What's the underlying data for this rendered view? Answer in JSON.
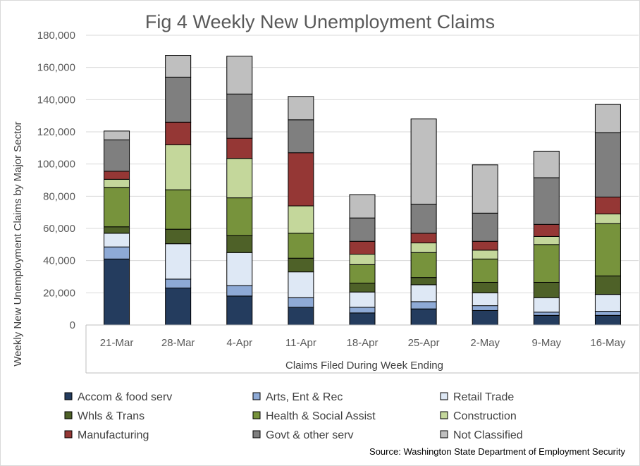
{
  "chart_data": {
    "type": "bar",
    "stacked": true,
    "title": "Fig 4 Weekly New Unemployment Claims",
    "xlabel": "Claims Filed During Week Ending",
    "ylabel": "Weekly New Unemployment Claims by Major Sector",
    "ylim": [
      0,
      180000
    ],
    "yticks": [
      "0",
      "20,000",
      "40,000",
      "60,000",
      "80,000",
      "100,000",
      "120,000",
      "140,000",
      "160,000",
      "180,000"
    ],
    "ytick_values": [
      0,
      20000,
      40000,
      60000,
      80000,
      100000,
      120000,
      140000,
      160000,
      180000
    ],
    "grid": true,
    "legend_position": "bottom",
    "categories": [
      "21-Mar",
      "28-Mar",
      "4-Apr",
      "11-Apr",
      "18-Apr",
      "25-Apr",
      "2-May",
      "9-May",
      "16-May"
    ],
    "series": [
      {
        "name": "Accom & food serv",
        "color": "#243c5e",
        "values": [
          41000,
          23000,
          18000,
          11000,
          7500,
          10000,
          9000,
          6000,
          6000
        ]
      },
      {
        "name": "Arts, Ent & Rec",
        "color": "#8eaad6",
        "values": [
          7500,
          5500,
          6500,
          6000,
          3500,
          4500,
          3000,
          2000,
          2500
        ]
      },
      {
        "name": "Retail Trade",
        "color": "#dee8f5",
        "values": [
          8500,
          22000,
          20500,
          16000,
          9500,
          10500,
          8000,
          9000,
          10500
        ]
      },
      {
        "name": "Whls & Trans",
        "color": "#4e6128",
        "values": [
          4000,
          9000,
          10500,
          8500,
          5500,
          4500,
          6500,
          9500,
          11500
        ]
      },
      {
        "name": "Health & Social Assist",
        "color": "#77933c",
        "values": [
          24500,
          24500,
          23500,
          15500,
          11500,
          15500,
          14500,
          23500,
          32500
        ]
      },
      {
        "name": "Construction",
        "color": "#c4d79b",
        "values": [
          5000,
          28000,
          24500,
          17000,
          6500,
          6000,
          5500,
          5000,
          6000
        ]
      },
      {
        "name": "Manufacturing",
        "color": "#953735",
        "values": [
          5000,
          14000,
          12500,
          33000,
          8000,
          6000,
          5500,
          7500,
          10500
        ]
      },
      {
        "name": "Govt & other serv",
        "color": "#7f7f7f",
        "values": [
          19500,
          28000,
          27500,
          20500,
          14500,
          18000,
          17500,
          29000,
          40000
        ]
      },
      {
        "name": "Not Classified",
        "color": "#bfbfbf",
        "values": [
          5500,
          13500,
          23500,
          14500,
          14500,
          53000,
          30000,
          16500,
          17500
        ]
      }
    ]
  },
  "source": "Source: Washington State Department of Employment Security"
}
